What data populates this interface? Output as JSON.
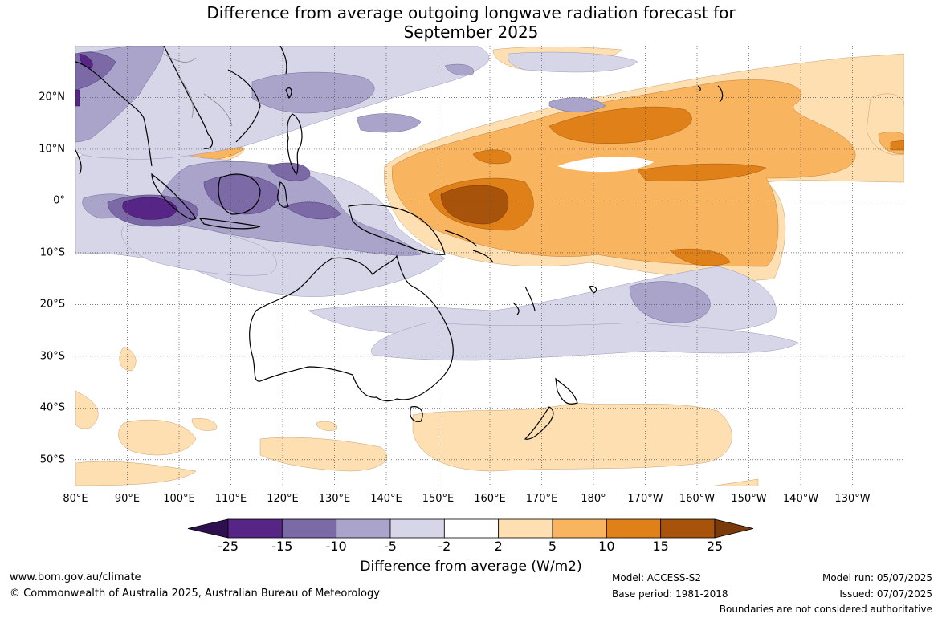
{
  "title": {
    "line1": "Difference from average outgoing longwave radiation forecast for",
    "line2": "September 2025"
  },
  "map": {
    "lon_labels": [
      "80°E",
      "90°E",
      "100°E",
      "110°E",
      "120°E",
      "130°E",
      "140°E",
      "150°E",
      "160°E",
      "170°E",
      "180°",
      "170°W",
      "160°W",
      "150°W",
      "140°W",
      "130°W"
    ],
    "lat_labels": [
      "20°N",
      "10°N",
      "0°",
      "10°S",
      "20°S",
      "30°S",
      "40°S",
      "50°S"
    ],
    "lon_range": [
      80,
      240
    ],
    "lat_range": [
      -55,
      30
    ],
    "gridlines": "dotted"
  },
  "colorbar": {
    "ticks": [
      "-25",
      "-15",
      "-10",
      "-5",
      "-2",
      "2",
      "5",
      "10",
      "15",
      "25"
    ],
    "colors": [
      "#2e0f4f",
      "#562586",
      "#7b6aa6",
      "#aaa4cb",
      "#d6d6e8",
      "#ffffff",
      "#fddfb2",
      "#f9b45f",
      "#df8018",
      "#a8530b",
      "#7a3a0a"
    ],
    "title": "Difference from average (W/m2)"
  },
  "footer": {
    "website": "www.bom.gov.au/climate",
    "copyright": "© Commonwealth of Australia 2025, Australian Bureau of Meteorology",
    "model": "Model: ACCESS-S2",
    "base_period": "Base period: 1981-2018",
    "model_run": "Model run: 05/07/2025",
    "issued": "Issued: 07/07/2025",
    "disclaimer": "Boundaries are not considered authoritative"
  }
}
